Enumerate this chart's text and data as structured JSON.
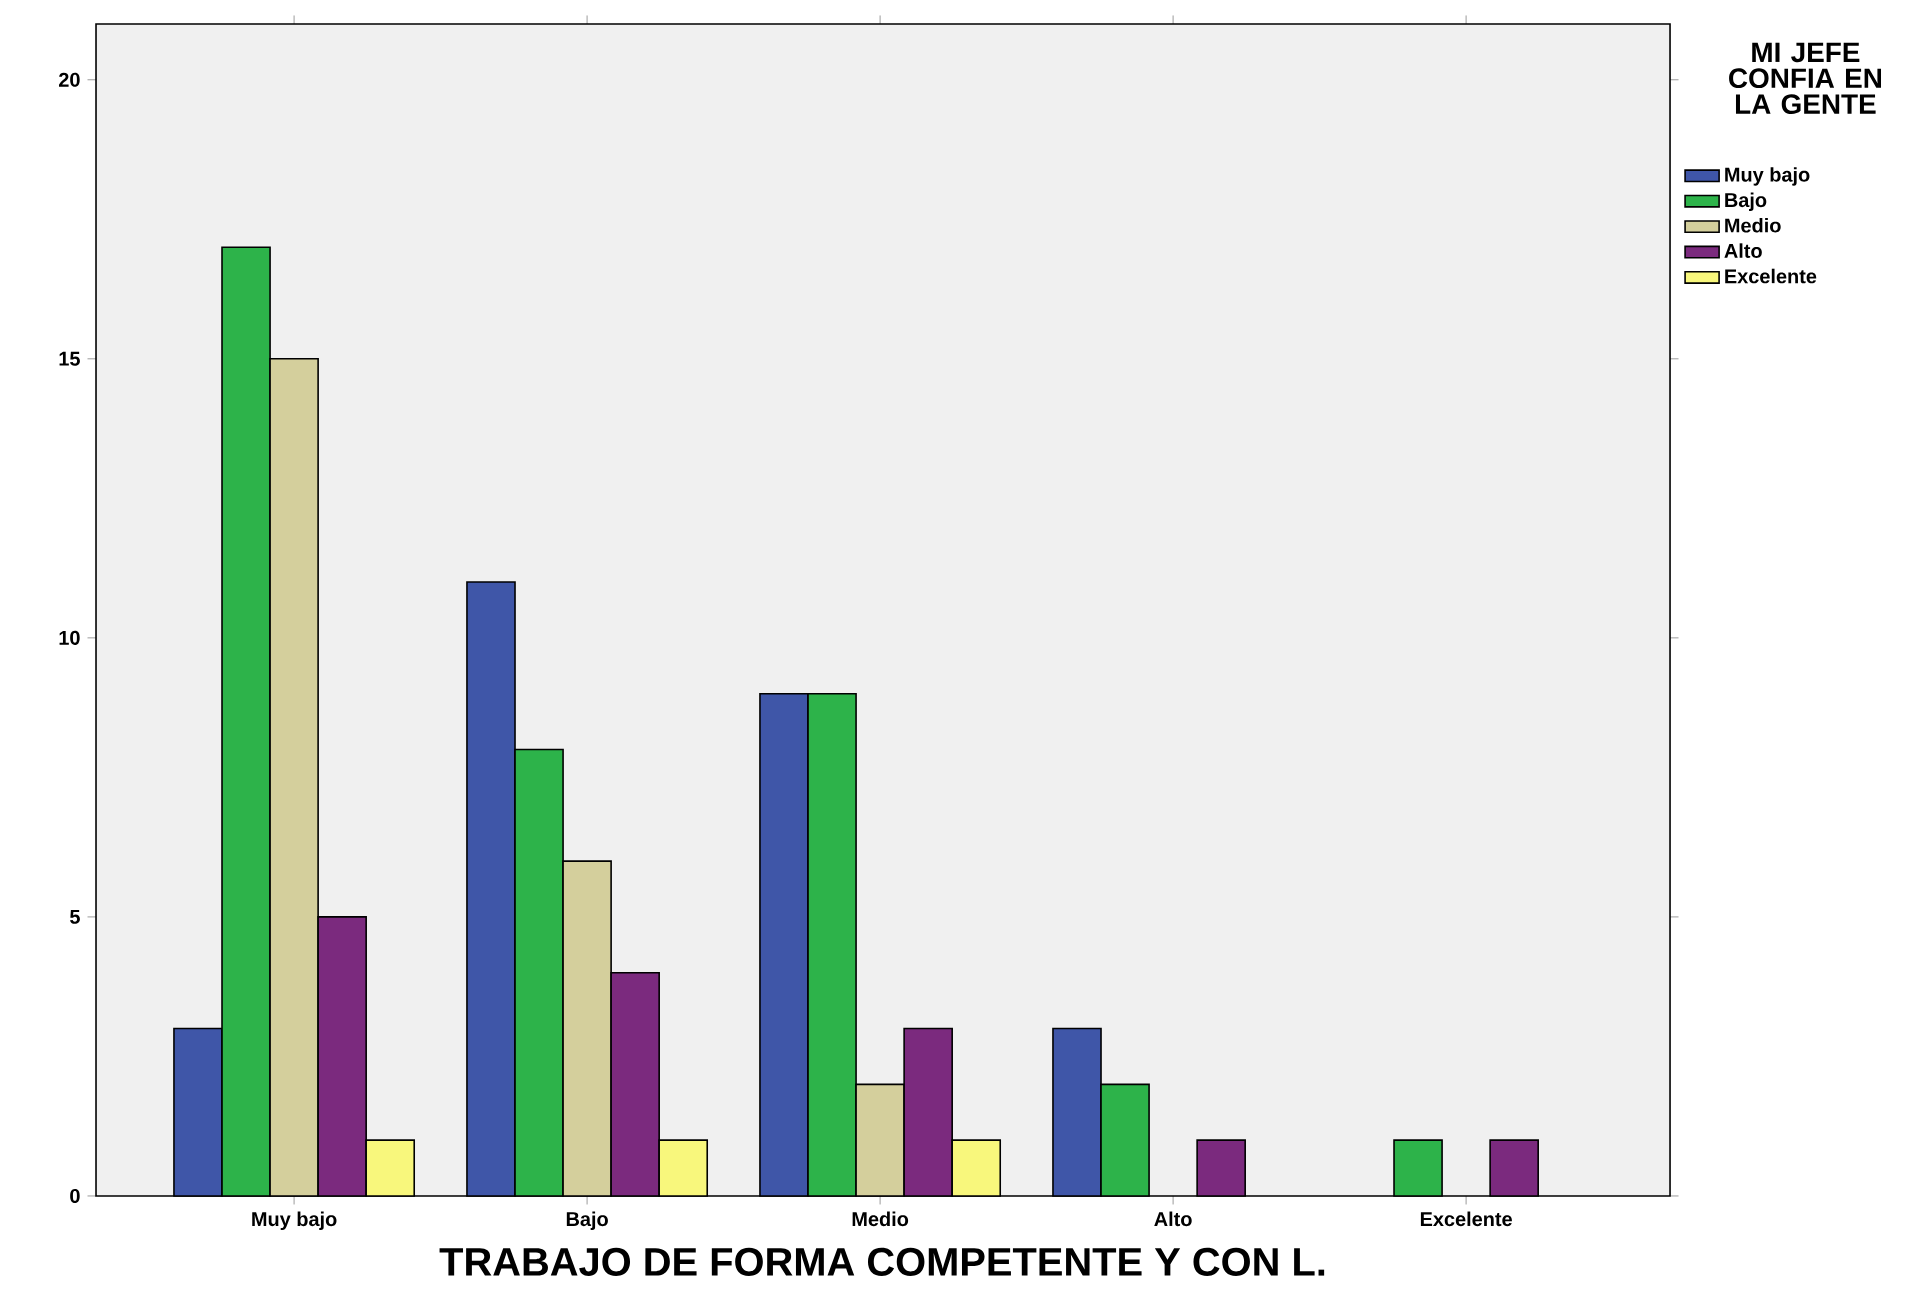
{
  "chart_data": {
    "type": "bar",
    "xlabel": "TRABAJO DE FORMA COMPETENTE Y CON L.",
    "legend_title": "MI JEFE CONFIA EN LA GENTE",
    "categories": [
      "Muy bajo",
      "Bajo",
      "Medio",
      "Alto",
      "Excelente"
    ],
    "series": [
      {
        "name": "Muy bajo",
        "color": "#3f56a8",
        "values": [
          3,
          11,
          9,
          3,
          null
        ]
      },
      {
        "name": "Bajo",
        "color": "#2db34a",
        "values": [
          17,
          8,
          9,
          2,
          1
        ]
      },
      {
        "name": "Medio",
        "color": "#d4cf9c",
        "values": [
          15,
          6,
          2,
          null,
          null
        ]
      },
      {
        "name": "Alto",
        "color": "#7b2a7e",
        "values": [
          5,
          4,
          3,
          1,
          1
        ]
      },
      {
        "name": "Excelente",
        "color": "#f8f77c",
        "values": [
          1,
          1,
          1,
          null,
          null
        ]
      }
    ],
    "ylim": [
      0,
      21
    ],
    "yticks": [
      0,
      5,
      10,
      15,
      20
    ],
    "grid": false,
    "legend": "right"
  }
}
